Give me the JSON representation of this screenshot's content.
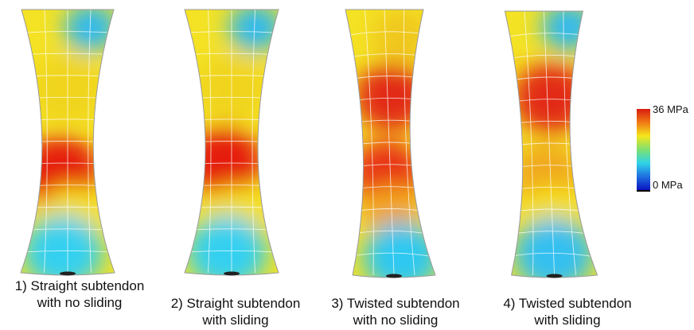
{
  "colorbar": {
    "max_label": "36 MPa",
    "min_label": "0 MPa",
    "colors": [
      "#d81c10",
      "#f07a14",
      "#f5e61c",
      "#7fe070",
      "#2fd4e8",
      "#1f70e0",
      "#0a14c0"
    ]
  },
  "panels": [
    {
      "caption_line1": "1) Straight subtendon",
      "caption_line2": "with no sliding",
      "twisted": false,
      "stress_spots": [
        {
          "color": "#2fb9f0"
        },
        {
          "color": "#f0d41c"
        },
        {
          "color": "#e51e10"
        },
        {
          "color": "#f5e01c"
        },
        {
          "color": "#35d0f0"
        }
      ]
    },
    {
      "caption_line1": "2) Straight subtendon",
      "caption_line2": "with sliding",
      "twisted": false,
      "stress_spots": [
        {
          "color": "#2fb9f0"
        },
        {
          "color": "#f0d41c"
        },
        {
          "color": "#e51e10"
        },
        {
          "color": "#f5e01c"
        },
        {
          "color": "#35d0f0"
        }
      ]
    },
    {
      "caption_line1": "3) Twisted subtendon",
      "caption_line2": "with no sliding",
      "twisted": true,
      "stress_spots": [
        {
          "color": "#f0c81c"
        },
        {
          "color": "#e22a12"
        },
        {
          "color": "#e83015"
        },
        {
          "color": "#f2a41a"
        },
        {
          "color": "#2fc8f0"
        }
      ]
    },
    {
      "caption_line1": "4) Twisted subtendon",
      "caption_line2": "with sliding",
      "twisted": true,
      "stress_spots": [
        {
          "color": "#2fb9f0"
        },
        {
          "color": "#e22a12"
        },
        {
          "color": "#f0a81a"
        },
        {
          "color": "#f5e01c"
        },
        {
          "color": "#35c0f0"
        }
      ]
    }
  ]
}
